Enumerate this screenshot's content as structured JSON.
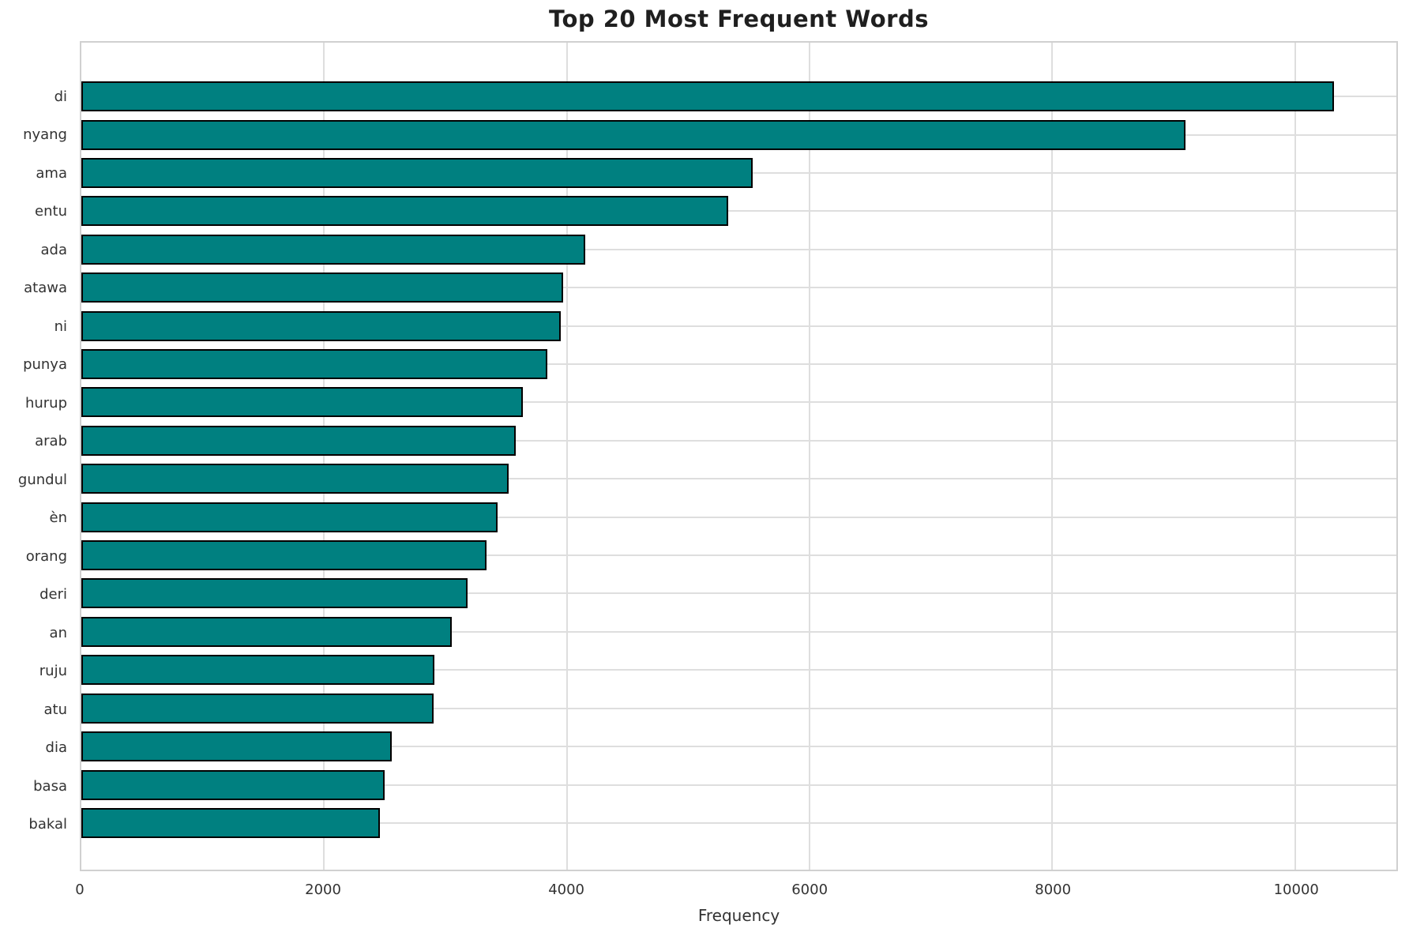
{
  "chart_data": {
    "type": "bar",
    "orientation": "horizontal",
    "title": "Top 20 Most Frequent Words",
    "xlabel": "Frequency",
    "ylabel": "",
    "categories": [
      "di",
      "nyang",
      "ama",
      "entu",
      "ada",
      "atawa",
      "ni",
      "punya",
      "hurup",
      "arab",
      "gundul",
      "èn",
      "orang",
      "deri",
      "an",
      "ruju",
      "atu",
      "dia",
      "basa",
      "bakal"
    ],
    "values": [
      10320,
      9100,
      5530,
      5330,
      4150,
      3970,
      3950,
      3840,
      3640,
      3580,
      3520,
      3430,
      3340,
      3180,
      3050,
      2910,
      2900,
      2560,
      2500,
      2460
    ],
    "x_ticks": [
      0,
      2000,
      4000,
      6000,
      8000,
      10000
    ],
    "x_tick_labels": [
      "0",
      "2000",
      "4000",
      "6000",
      "8000",
      "10000"
    ],
    "xlim": [
      0,
      10836
    ],
    "grid": true,
    "legend": "none",
    "bar_color": "#008080",
    "bar_edge_color": "#000000",
    "grid_color": "#dedede",
    "spine_color": "#d0d0d0",
    "text_color": "#333333",
    "title_color": "#1f1f1f"
  }
}
